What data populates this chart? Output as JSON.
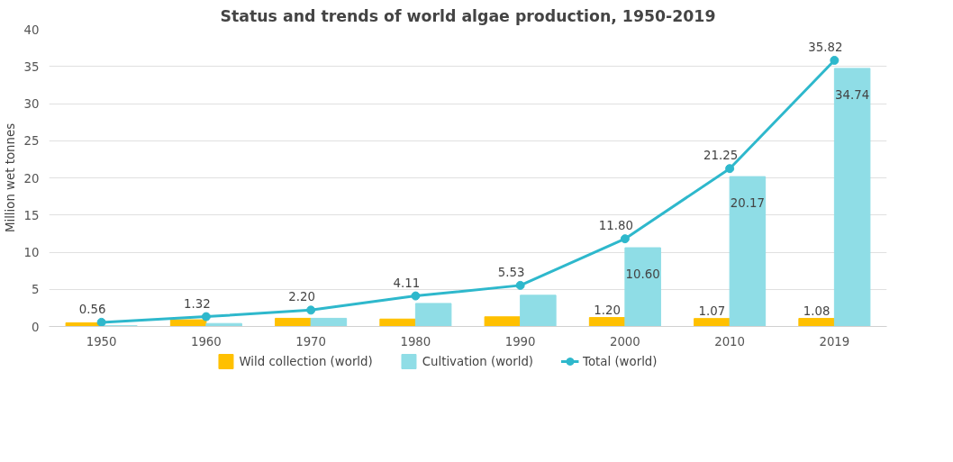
{
  "chart_data": {
    "type": "bar",
    "title": "Status and trends of world algae production, 1950-2019",
    "ylabel": "Million wet tonnes",
    "categories": [
      "1950",
      "1960",
      "1970",
      "1980",
      "1990",
      "2000",
      "2010",
      "2019"
    ],
    "ylim": [
      0,
      40
    ],
    "yticks": [
      0,
      5,
      10,
      15,
      20,
      25,
      30,
      35,
      40
    ],
    "grid": "y",
    "legend": "bottom",
    "series": [
      {
        "name": "Wild collection (world)",
        "color": "#ffc000",
        "values": [
          0.5,
          0.9,
          1.1,
          1.0,
          1.3,
          1.2,
          1.07,
          1.08
        ],
        "value_labels": [
          null,
          null,
          null,
          null,
          null,
          "1.20",
          "1.07",
          "1.08"
        ]
      },
      {
        "name": "Cultivation (world)",
        "color": "#8fdde6",
        "values": [
          0.1,
          0.4,
          1.1,
          3.1,
          4.2,
          10.6,
          20.17,
          34.74
        ],
        "value_labels": [
          null,
          null,
          null,
          null,
          null,
          "10.60",
          "20.17",
          "34.74"
        ]
      },
      {
        "name": "Total (world)",
        "type": "line",
        "color": "#2eb8cc",
        "marker": "circle",
        "values": [
          0.56,
          1.32,
          2.2,
          4.11,
          5.53,
          11.8,
          21.25,
          35.82
        ],
        "value_labels": [
          "0.56",
          "1.32",
          "2.20",
          "4.11",
          "5.53",
          "11.80",
          "21.25",
          "35.82"
        ]
      }
    ]
  }
}
